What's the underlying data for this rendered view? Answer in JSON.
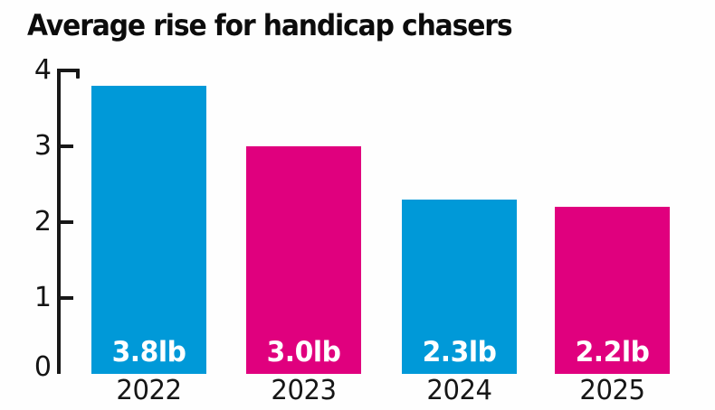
{
  "title": "Average rise for handicap chasers",
  "colors": {
    "bar_blue": "#0099D8",
    "bar_pink": "#E0007E",
    "axis": "#171717",
    "bar_label_text": "#FFFFFF",
    "text": "#141414",
    "background": "#FEFEFE"
  },
  "chart_data": {
    "type": "bar",
    "title": "Average rise for handicap chasers",
    "categories": [
      "2022",
      "2023",
      "2024",
      "2025"
    ],
    "values": [
      3.8,
      3.0,
      2.3,
      2.2
    ],
    "value_labels": [
      "3.8lb",
      "3.0lb",
      "2.3lb",
      "2.2lb"
    ],
    "bar_colors": [
      "#0099D8",
      "#E0007E",
      "#0099D8",
      "#E0007E"
    ],
    "unit": "lb",
    "xlabel": "",
    "ylabel": "",
    "ylim": [
      0,
      4
    ],
    "yticks": [
      {
        "value": 0,
        "label": "0"
      },
      {
        "value": 1,
        "label": "1"
      },
      {
        "value": 2,
        "label": "2"
      },
      {
        "value": 3,
        "label": "3"
      },
      {
        "value": 4,
        "label": "4"
      }
    ],
    "grid": false,
    "legend_position": "none",
    "value_labels_position": "inside-bottom"
  }
}
